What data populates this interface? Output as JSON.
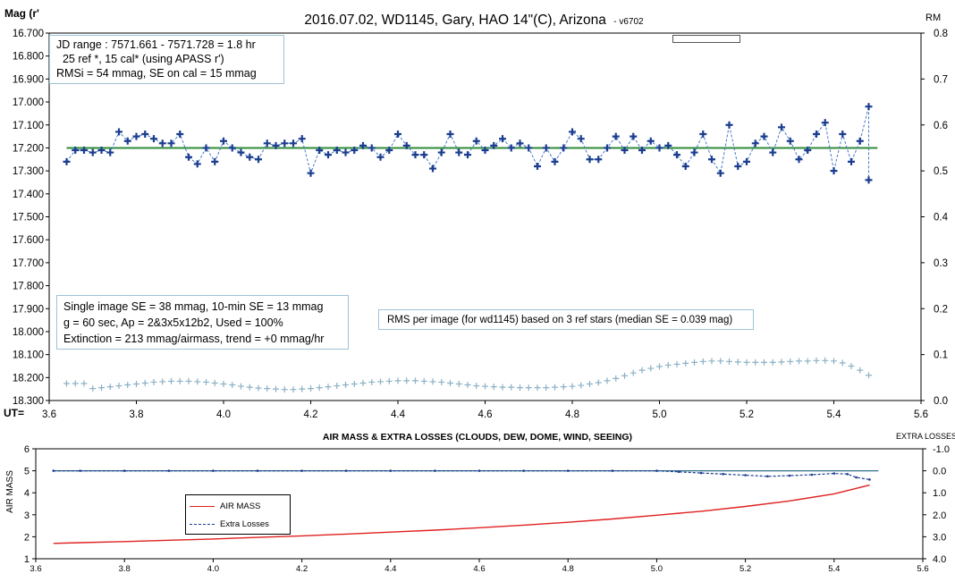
{
  "top_chart": {
    "title": "2016.07.02,  WD1145, Gary, HAO  14\"(C), Arizona",
    "version": "- v6702",
    "ylabel_left": "Mag (r'",
    "ylabel_right": "RM",
    "xlabel": "UT=",
    "info_box": {
      "line1": "JD range  : 7571.661 - 7571.728 = 1.8 hr",
      "line2": "  25 ref *, 15 cal* (using APASS r')",
      "line3": "RMSi = 54 mmag, SE on cal = 15 mmag"
    },
    "se_box": {
      "line1": "Single image SE = 38 mmag, 10-min SE = 13 mmag",
      "line2": "g = 60 sec, Ap = 2&3x5x12b2, Used = 100%",
      "line3": "Extinction = 213 mmag/airmass, trend = +0 mmag/hr"
    },
    "rms_note": "RMS per image (for wd1145) based on 3 ref stars (median SE = 0.039 mag)"
  },
  "bottom_chart": {
    "title": "AIR MASS & EXTRA LOSSES (CLOUDS, DEW, DOME, WIND, SEEING)",
    "ylabel_left": "AIR MASS",
    "ylabel_right": "EXTRA LOSSES",
    "legend_airmass": "AIR MASS",
    "legend_losses": "Extra Losses"
  },
  "chart_data": [
    {
      "type": "scatter",
      "title": "2016.07.02,  WD1145, Gary, HAO  14\"(C), Arizona",
      "xlabel": "UT=",
      "ylabel": "Mag (r'",
      "y2label": "RM",
      "xlim": [
        3.6,
        5.6
      ],
      "xticks": [
        "3.6",
        "3.8",
        "4.0",
        "4.2",
        "4.4",
        "4.6",
        "4.8",
        "5.0",
        "5.2",
        "5.4",
        "5.6"
      ],
      "ylim": [
        16.7,
        18.3
      ],
      "y_inverted": true,
      "yticks": [
        "16.700",
        "16.800",
        "16.900",
        "17.000",
        "17.100",
        "17.200",
        "17.300",
        "17.400",
        "17.500",
        "17.600",
        "17.700",
        "17.800",
        "17.900",
        "18.000",
        "18.100",
        "18.200",
        "18.300"
      ],
      "y2lim": [
        0.0,
        0.8
      ],
      "y2ticks": [
        "0.0",
        "0.1",
        "0.2",
        "0.3",
        "0.4",
        "0.5",
        "0.6",
        "0.7",
        "0.8"
      ],
      "ref_line": 17.2,
      "series": [
        {
          "name": "",
          "color": "#1b3d8f",
          "x": [
            3.64,
            3.66,
            3.68,
            3.7,
            3.72,
            3.74,
            3.76,
            3.78,
            3.8,
            3.82,
            3.84,
            3.86,
            3.88,
            3.9,
            3.92,
            3.94,
            3.96,
            3.98,
            4.0,
            4.02,
            4.04,
            4.06,
            4.08,
            4.1,
            4.12,
            4.14,
            4.16,
            4.18,
            4.2,
            4.22,
            4.24,
            4.26,
            4.28,
            4.3,
            4.32,
            4.34,
            4.36,
            4.38,
            4.4,
            4.42,
            4.44,
            4.46,
            4.48,
            4.5,
            4.52,
            4.54,
            4.56,
            4.58,
            4.6,
            4.62,
            4.64,
            4.66,
            4.68,
            4.7,
            4.72,
            4.74,
            4.76,
            4.78,
            4.8,
            4.82,
            4.84,
            4.86,
            4.88,
            4.9,
            4.92,
            4.94,
            4.96,
            4.98,
            5.0,
            5.02,
            5.04,
            5.06,
            5.08,
            5.1,
            5.12,
            5.14,
            5.16,
            5.18,
            5.2,
            5.22,
            5.24,
            5.26,
            5.28,
            5.3,
            5.32,
            5.34,
            5.36,
            5.38,
            5.4,
            5.42,
            5.44,
            5.46,
            5.48
          ],
          "values": [
            17.26,
            17.21,
            17.21,
            17.22,
            17.21,
            17.22,
            17.13,
            17.17,
            17.15,
            17.14,
            17.16,
            17.18,
            17.18,
            17.14,
            17.24,
            17.27,
            17.2,
            17.26,
            17.17,
            17.2,
            17.22,
            17.24,
            17.25,
            17.18,
            17.19,
            17.18,
            17.18,
            17.16,
            17.31,
            17.21,
            17.23,
            17.21,
            17.22,
            17.21,
            17.19,
            17.2,
            17.24,
            17.21,
            17.14,
            17.19,
            17.23,
            17.23,
            17.29,
            17.22,
            17.14,
            17.22,
            17.23,
            17.17,
            17.21,
            17.19,
            17.16,
            17.2,
            17.18,
            17.2,
            17.28,
            17.2,
            17.26,
            17.2,
            17.13,
            17.16,
            17.25,
            17.25,
            17.2,
            17.15,
            17.21,
            17.15,
            17.21,
            17.17,
            17.2,
            17.19,
            17.23,
            17.28,
            17.22,
            17.14,
            17.25,
            17.31,
            17.1,
            17.28,
            17.26,
            17.18,
            17.15,
            17.22,
            17.11,
            17.17,
            17.25,
            17.21,
            17.14,
            17.09,
            17.3,
            17.14,
            17.26,
            17.17,
            17.02
          ]
        },
        {
          "name": "RMS per image",
          "axis": "right",
          "color": "#8cb0c6",
          "x": [
            3.64,
            3.66,
            3.68,
            3.7,
            3.72,
            3.74,
            3.76,
            3.78,
            3.8,
            3.82,
            3.84,
            3.86,
            3.88,
            3.9,
            3.92,
            3.94,
            3.96,
            3.98,
            4.0,
            4.02,
            4.04,
            4.06,
            4.08,
            4.1,
            4.12,
            4.14,
            4.16,
            4.18,
            4.2,
            4.22,
            4.24,
            4.26,
            4.28,
            4.3,
            4.32,
            4.34,
            4.36,
            4.38,
            4.4,
            4.42,
            4.44,
            4.46,
            4.48,
            4.5,
            4.52,
            4.54,
            4.56,
            4.58,
            4.6,
            4.62,
            4.64,
            4.66,
            4.68,
            4.7,
            4.72,
            4.74,
            4.76,
            4.78,
            4.8,
            4.82,
            4.84,
            4.86,
            4.88,
            4.9,
            4.92,
            4.94,
            4.96,
            4.98,
            5.0,
            5.02,
            5.04,
            5.06,
            5.08,
            5.1,
            5.12,
            5.14,
            5.16,
            5.18,
            5.2,
            5.22,
            5.24,
            5.26,
            5.28,
            5.3,
            5.32,
            5.34,
            5.36,
            5.38,
            5.4,
            5.42,
            5.44,
            5.46,
            5.48
          ],
          "values": [
            0.037,
            0.037,
            0.037,
            0.026,
            0.028,
            0.03,
            0.032,
            0.034,
            0.036,
            0.038,
            0.04,
            0.041,
            0.042,
            0.042,
            0.042,
            0.041,
            0.04,
            0.038,
            0.036,
            0.034,
            0.031,
            0.029,
            0.027,
            0.026,
            0.025,
            0.024,
            0.024,
            0.025,
            0.026,
            0.028,
            0.03,
            0.032,
            0.034,
            0.036,
            0.038,
            0.04,
            0.041,
            0.042,
            0.043,
            0.043,
            0.043,
            0.042,
            0.041,
            0.04,
            0.038,
            0.036,
            0.034,
            0.032,
            0.031,
            0.03,
            0.029,
            0.029,
            0.028,
            0.028,
            0.028,
            0.028,
            0.029,
            0.03,
            0.031,
            0.033,
            0.036,
            0.039,
            0.043,
            0.048,
            0.054,
            0.06,
            0.066,
            0.07,
            0.074,
            0.077,
            0.079,
            0.081,
            0.083,
            0.085,
            0.086,
            0.086,
            0.085,
            0.084,
            0.083,
            0.083,
            0.083,
            0.083,
            0.084,
            0.085,
            0.086,
            0.086,
            0.087,
            0.087,
            0.086,
            0.082,
            0.075,
            0.066,
            0.055
          ]
        }
      ]
    },
    {
      "type": "line",
      "title": "AIR MASS & EXTRA LOSSES (CLOUDS, DEW, DOME, WIND, SEEING)",
      "xlabel": "",
      "ylabel": "AIR MASS",
      "y2label": "EXTRA LOSSES",
      "xlim": [
        3.6,
        5.6
      ],
      "xticks": [
        "3.6",
        "3.8",
        "4.0",
        "4.2",
        "4.4",
        "4.6",
        "4.8",
        "5.0",
        "5.2",
        "5.4",
        "5.6"
      ],
      "ylim": [
        1,
        6
      ],
      "yticks": [
        "1",
        "2",
        "3",
        "4",
        "5",
        "6"
      ],
      "y2lim": [
        -1.0,
        4.0
      ],
      "y2_inverted": true,
      "y2ticks": [
        "-1.0",
        "0.0",
        "1.0",
        "2.0",
        "3.0",
        "4.0"
      ],
      "series": [
        {
          "name": "AIR MASS",
          "color": "#e02020",
          "x": [
            3.64,
            3.7,
            3.8,
            3.9,
            4.0,
            4.1,
            4.2,
            4.3,
            4.4,
            4.5,
            4.6,
            4.7,
            4.8,
            4.9,
            5.0,
            5.1,
            5.2,
            5.3,
            5.4,
            5.48
          ],
          "values": [
            1.7,
            1.73,
            1.78,
            1.84,
            1.9,
            1.97,
            2.04,
            2.12,
            2.21,
            2.3,
            2.41,
            2.53,
            2.66,
            2.81,
            2.98,
            3.16,
            3.38,
            3.63,
            3.95,
            4.35
          ]
        },
        {
          "name": "Extra Losses",
          "axis": "right",
          "color": "#1b3d8f",
          "x": [
            3.64,
            3.7,
            3.8,
            3.9,
            4.0,
            4.1,
            4.2,
            4.3,
            4.4,
            4.5,
            4.6,
            4.7,
            4.8,
            4.9,
            5.0,
            5.05,
            5.1,
            5.15,
            5.2,
            5.25,
            5.3,
            5.35,
            5.4,
            5.43,
            5.45,
            5.48
          ],
          "values": [
            0.0,
            0.0,
            0.0,
            0.0,
            0.0,
            0.0,
            0.0,
            0.0,
            0.0,
            0.0,
            0.0,
            0.0,
            0.0,
            0.0,
            0.0,
            0.05,
            0.1,
            0.15,
            0.2,
            0.25,
            0.22,
            0.18,
            0.12,
            0.15,
            0.3,
            0.4
          ]
        }
      ]
    }
  ]
}
